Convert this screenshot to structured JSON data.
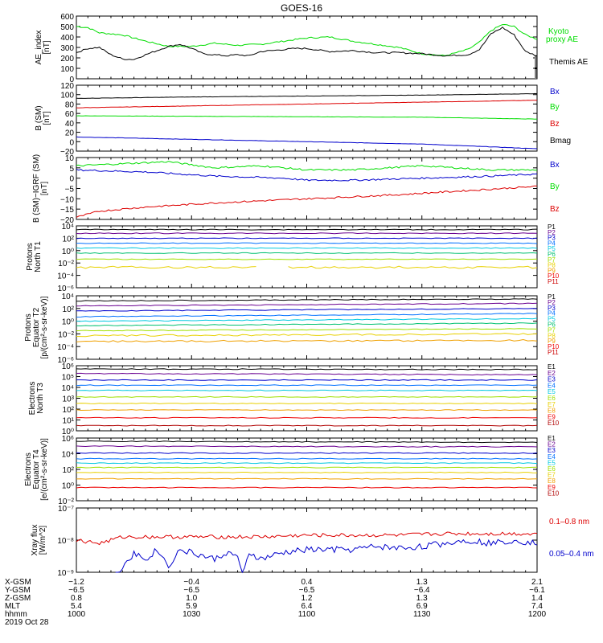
{
  "title": "GOES-16",
  "colors": {
    "black": "#000000",
    "green": "#00dd00",
    "red": "#dd0000",
    "blue": "#0000cc",
    "cyan": "#00c8e0",
    "teal": "#00b090",
    "lime": "#a0e000",
    "yellow": "#e8d000",
    "orange": "#f09000",
    "darkred": "#b00000",
    "purple": "#8000a0",
    "navy": "#000090"
  },
  "chart_data": [
    {
      "type": "line",
      "panel": "ae_index",
      "ylabel": "AE_index [nT]",
      "ylim": [
        0,
        600
      ],
      "yticks": [
        "600",
        "500",
        "400",
        "300",
        "200",
        "100",
        "0"
      ],
      "series": [
        {
          "name": "Kyoto proxy AE",
          "color": "green",
          "x": [
            0,
            5,
            10,
            20,
            30,
            40,
            50,
            60,
            70,
            80,
            90,
            100,
            110,
            120,
            130,
            140,
            150,
            160,
            170,
            175,
            180,
            185,
            190,
            195,
            200
          ],
          "values": [
            500,
            490,
            440,
            420,
            360,
            310,
            310,
            340,
            320,
            330,
            360,
            390,
            400,
            360,
            330,
            300,
            240,
            220,
            280,
            350,
            460,
            520,
            500,
            420,
            380
          ]
        },
        {
          "name": "Themis AE",
          "color": "black",
          "x": [
            0,
            5,
            10,
            15,
            20,
            25,
            30,
            35,
            40,
            45,
            50,
            55,
            60,
            65,
            70,
            75,
            80,
            85,
            90,
            95,
            100,
            110,
            120,
            130,
            140,
            150,
            160,
            170,
            175,
            180,
            185,
            190,
            195,
            200
          ],
          "values": [
            250,
            290,
            300,
            230,
            190,
            185,
            230,
            270,
            310,
            330,
            290,
            240,
            230,
            220,
            230,
            220,
            260,
            270,
            280,
            290,
            290,
            260,
            270,
            250,
            250,
            240,
            220,
            230,
            280,
            430,
            490,
            420,
            260,
            220
          ]
        }
      ]
    },
    {
      "type": "line",
      "panel": "b_sm",
      "ylabel": "B (SM) [nT]",
      "ylim": [
        -20,
        120
      ],
      "yticks": [
        "120",
        "100",
        "80",
        "60",
        "40",
        "20",
        "0",
        "−20"
      ],
      "series": [
        {
          "name": "Bx",
          "color": "blue",
          "x": [
            0,
            50,
            100,
            150,
            200
          ],
          "values": [
            10,
            5,
            0,
            -5,
            -15
          ]
        },
        {
          "name": "By",
          "color": "green",
          "x": [
            0,
            50,
            100,
            150,
            200
          ],
          "values": [
            55,
            54,
            53,
            52,
            48
          ]
        },
        {
          "name": "Bz",
          "color": "red",
          "x": [
            0,
            50,
            100,
            150,
            200
          ],
          "values": [
            72,
            76,
            80,
            84,
            88
          ]
        },
        {
          "name": "Bmag",
          "color": "black",
          "x": [
            0,
            50,
            100,
            150,
            200
          ],
          "values": [
            92,
            95,
            97,
            99,
            102
          ]
        }
      ]
    },
    {
      "type": "line",
      "panel": "b_minus_igrf",
      "ylabel": "B (SM)−IGRF (SM) [nT]",
      "ylim": [
        -20,
        10
      ],
      "yticks": [
        "10",
        "5",
        "0",
        "−5",
        "−10",
        "−15",
        "−20"
      ],
      "series": [
        {
          "name": "Bx",
          "color": "blue",
          "x": [
            0,
            30,
            60,
            90,
            100,
            120,
            150,
            180,
            200
          ],
          "values": [
            4,
            3,
            1,
            0,
            -1,
            -1,
            0,
            1,
            2
          ]
        },
        {
          "name": "By",
          "color": "green",
          "x": [
            0,
            20,
            40,
            60,
            80,
            100,
            120,
            150,
            180,
            200
          ],
          "values": [
            6,
            7,
            8,
            5,
            6,
            4,
            4,
            6,
            4,
            4
          ]
        },
        {
          "name": "Bz",
          "color": "red",
          "x": [
            0,
            10,
            30,
            60,
            100,
            140,
            170,
            200
          ],
          "values": [
            -19,
            -16,
            -14,
            -12,
            -10,
            -8,
            -6,
            -4
          ]
        }
      ]
    },
    {
      "type": "line",
      "panel": "protons_north_t1",
      "ylabel": "Protons North T1",
      "scale": "log",
      "yticks": [
        "10⁴",
        "10²",
        "10⁰",
        "10⁻²",
        "10⁻⁴",
        "10⁻⁶"
      ],
      "legend": [
        "P1",
        "P2",
        "P3",
        "P4",
        "P5",
        "P6",
        "P7",
        "P8",
        "P9",
        "P10",
        "P11"
      ]
    },
    {
      "type": "line",
      "panel": "protons_equator_t2",
      "ylabel": "Protons Equator T2 [p/(cm²-s-sr-keV)]",
      "scale": "log",
      "yticks": [
        "10⁴",
        "10²",
        "10⁰",
        "10⁻²",
        "10⁻⁴",
        "10⁻⁶"
      ],
      "legend": [
        "P1",
        "P2",
        "P3",
        "P4",
        "P5",
        "P6",
        "P7",
        "P8",
        "P9",
        "P10",
        "P11"
      ]
    },
    {
      "type": "line",
      "panel": "electrons_north_t3",
      "ylabel": "Electrons North T3",
      "scale": "log",
      "yticks": [
        "10⁶",
        "10⁵",
        "10⁴",
        "10³",
        "10²",
        "10¹",
        "10⁰"
      ],
      "legend": [
        "E1",
        "E2",
        "E3",
        "E4",
        "E5",
        "E6",
        "E7",
        "E8",
        "E9",
        "E10"
      ]
    },
    {
      "type": "line",
      "panel": "electrons_equator_t4",
      "ylabel": "Electrons Equator T4 [e/(cm²-s-sr-keV)]",
      "scale": "log",
      "yticks": [
        "10⁶",
        "10⁴",
        "10²",
        "10⁰",
        "10⁻²"
      ],
      "legend": [
        "E1",
        "E2",
        "E3",
        "E4",
        "E5",
        "E6",
        "E7",
        "E8",
        "E9",
        "E10"
      ]
    },
    {
      "type": "line",
      "panel": "xray",
      "ylabel": "Xray flux [W/m^2]",
      "scale": "log",
      "ylim_exp": [
        -9,
        -7
      ],
      "yticks": [
        "10⁻⁷",
        "10⁻⁸",
        "10⁻⁹"
      ],
      "series": [
        {
          "name": "0.1–0.8 nm",
          "color": "red",
          "x": [
            0,
            10,
            20,
            40,
            60,
            80,
            100,
            120,
            140,
            160,
            180,
            200
          ],
          "exp": [
            -8.0,
            -8.1,
            -7.9,
            -7.9,
            -7.9,
            -7.9,
            -7.85,
            -7.85,
            -7.85,
            -7.8,
            -7.8,
            -7.8
          ]
        },
        {
          "name": "0.05–0.4 nm",
          "color": "blue",
          "x": [
            17,
            20,
            25,
            30,
            35,
            40,
            45,
            50,
            55,
            60,
            65,
            70,
            72,
            75,
            80,
            90,
            100,
            110,
            120,
            130,
            140,
            150,
            160,
            170,
            180,
            190,
            200
          ],
          "exp": [
            -9.2,
            -8.8,
            -8.4,
            -8.6,
            -8.3,
            -8.8,
            -8.3,
            -8.4,
            -8.5,
            -8.6,
            -8.4,
            -8.5,
            -9.2,
            -8.4,
            -8.6,
            -8.4,
            -8.3,
            -8.3,
            -8.3,
            -8.2,
            -8.25,
            -8.2,
            -8.1,
            -8.0,
            -8.1,
            -8.0,
            -8.1
          ]
        }
      ]
    }
  ],
  "ae_legend": {
    "kyoto_line1": "Kyoto",
    "kyoto_line2": "proxy AE",
    "themis": "Themis AE"
  },
  "bsm_legend": [
    "Bx",
    "By",
    "Bz",
    "Bmag"
  ],
  "bdiff_legend": [
    "Bx",
    "By",
    "Bz"
  ],
  "xray_legend": [
    "0.1–0.8 nm",
    "0.05–0.4 nm"
  ],
  "ephemeris": {
    "row_labels": [
      "X-GSM",
      "Y-GSM",
      "Z-GSM",
      "MLT",
      "hhmm",
      "2019 Oct 28"
    ],
    "columns": [
      [
        "−1.2",
        "−6.5",
        "0.8",
        "5.4",
        "1000"
      ],
      [
        "−0.4",
        "−6.5",
        "1.0",
        "5.9",
        "1030"
      ],
      [
        "0.4",
        "−6.5",
        "1.2",
        "6.4",
        "1100"
      ],
      [
        "1.3",
        "−6.4",
        "1.3",
        "6.9",
        "1130"
      ],
      [
        "2.1",
        "−6.1",
        "1.4",
        "7.4",
        "1200"
      ]
    ]
  }
}
